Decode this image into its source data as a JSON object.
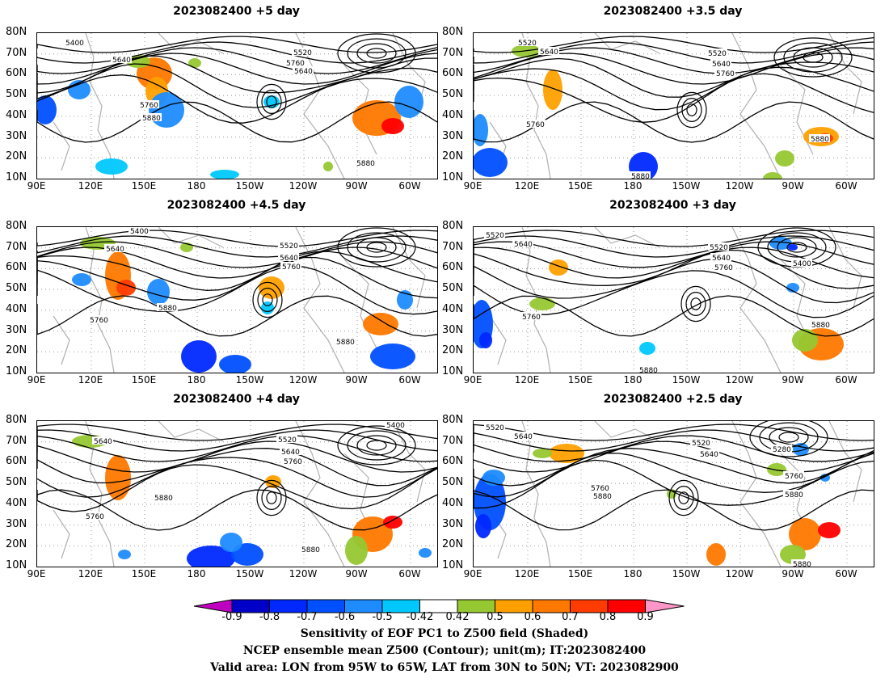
{
  "panels": [
    {
      "title": "2023082400 +5 day",
      "contour_labels": [
        "5400",
        "5520",
        "5640",
        "5760",
        "5640",
        "5760",
        "5880",
        "5880"
      ]
    },
    {
      "title": "2023082400 +3.5 day",
      "contour_labels": [
        "5520",
        "5640",
        "5520",
        "5640",
        "5760",
        "5760",
        "5880",
        "5880"
      ]
    },
    {
      "title": "2023082400 +4.5 day",
      "contour_labels": [
        "5400",
        "5640",
        "5520",
        "5640",
        "5760",
        "5880",
        "5760",
        "5880"
      ]
    },
    {
      "title": "2023082400 +3 day",
      "contour_labels": [
        "5520",
        "5640",
        "5520",
        "5640",
        "5760",
        "5400",
        "5760",
        "5880",
        "5880"
      ]
    },
    {
      "title": "2023082400 +4 day",
      "contour_labels": [
        "5640",
        "5520",
        "5400",
        "5640",
        "5760",
        "5880",
        "5760",
        "5880"
      ]
    },
    {
      "title": "2023082400 +2.5 day",
      "contour_labels": [
        "5520",
        "5640",
        "5520",
        "5640",
        "5280",
        "5760",
        "5880",
        "5760",
        "5880",
        "5880"
      ]
    }
  ],
  "y_axis_labels": [
    "80N",
    "70N",
    "60N",
    "50N",
    "40N",
    "30N",
    "20N",
    "10N"
  ],
  "x_axis_labels": [
    "90E",
    "120E",
    "150E",
    "180",
    "150W",
    "120W",
    "90W",
    "60W"
  ],
  "colorbar": {
    "labels": [
      "-0.9",
      "-0.8",
      "-0.7",
      "-0.6",
      "-0.5",
      "-0.42",
      "0.42",
      "0.5",
      "0.6",
      "0.7",
      "0.8",
      "0.9"
    ],
    "colors": [
      "#c000c0",
      "#0000c8",
      "#0028ff",
      "#0050ff",
      "#1e8cff",
      "#00c8ff",
      "#ffffff",
      "#96c832",
      "#ffa000",
      "#ff7800",
      "#ff3c00",
      "#ff0000",
      "#ff96c8"
    ]
  },
  "caption": {
    "line1": "Sensitivity of EOF PC1 to Z500 field (Shaded)",
    "line2": "NCEP ensemble mean Z500 (Contour); unit(m); IT:2023082400",
    "line3": "Valid area: LON from 95W to 65W, LAT from 30N to 50N; VT: 2023082900"
  }
}
